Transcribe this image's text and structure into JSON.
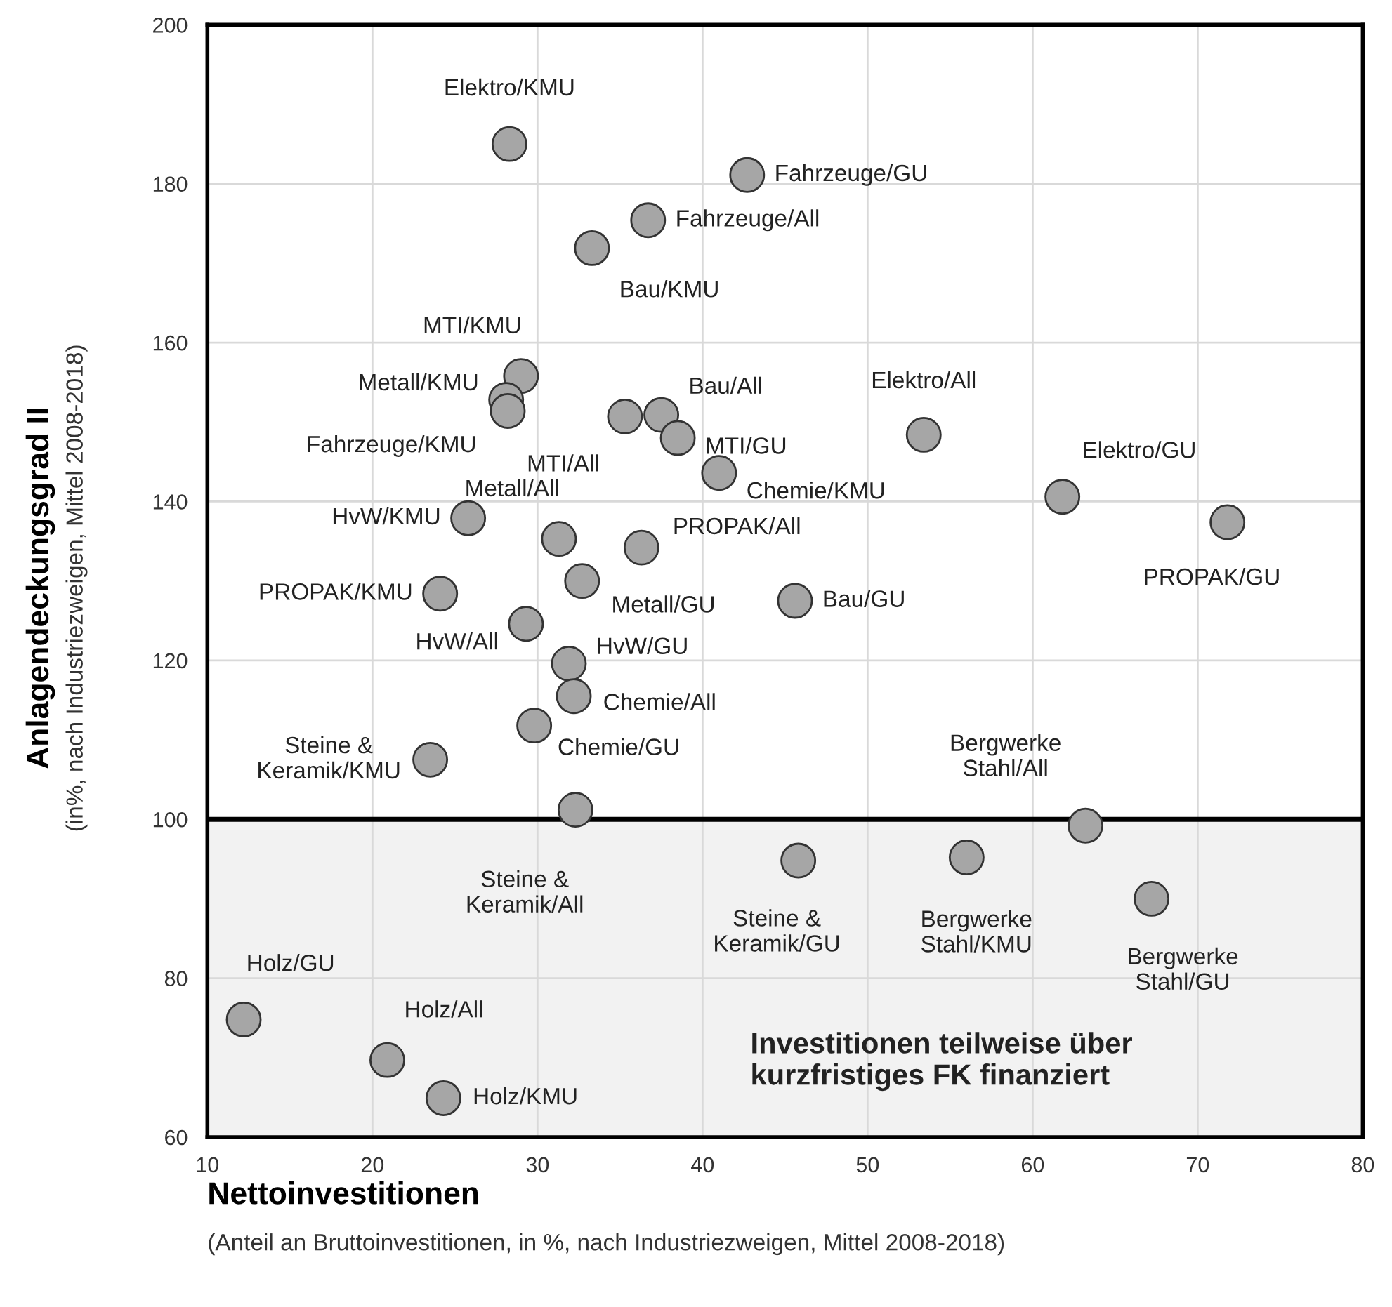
{
  "chart_data": {
    "type": "scatter",
    "xlabel": "Nettoinvestitionen",
    "ylabel": "Anlagendeckungsgrad II",
    "annotations": [
      "(Anteil an Bruttoinvestitionen, in %, nach Industriezweigen, Mittel 2008-2018)",
      "(in%, nach Industriezweigen, Mittel 2008-2018)"
    ],
    "x": [
      28.3,
      42.7,
      36.7,
      33.3,
      29.0,
      28.1,
      28.2,
      35.3,
      37.5,
      38.5,
      53.4,
      41.0,
      61.8,
      71.8,
      25.8,
      31.3,
      36.3,
      32.7,
      24.1,
      45.6,
      29.3,
      31.9,
      32.2,
      29.8,
      23.5,
      32.3,
      63.2,
      45.8,
      56.0,
      67.2,
      12.2,
      20.9,
      24.3
    ],
    "values": [
      185.0,
      181.1,
      175.4,
      171.9,
      155.8,
      152.8,
      151.4,
      150.7,
      150.9,
      148.0,
      148.4,
      143.6,
      140.6,
      137.4,
      137.9,
      135.3,
      134.2,
      130.0,
      128.4,
      127.5,
      124.6,
      119.6,
      115.5,
      111.8,
      107.5,
      101.2,
      99.2,
      94.8,
      95.2,
      90.0,
      74.8,
      69.7,
      64.9
    ],
    "value_labels": [
      "Elektro/KMU",
      "Fahrzeuge/GU",
      "Fahrzeuge/All",
      "Bau/KMU",
      "MTI/KMU",
      "Metall/KMU",
      "Fahrzeuge/KMU",
      "MTI/All",
      "Bau/All",
      "MTI/GU",
      "Elektro/All",
      "Chemie/KMU",
      "Elektro/GU",
      "PROPAK/GU",
      "HvW/KMU",
      "Metall/All",
      "PROPAK/All",
      "Metall/GU",
      "PROPAK/KMU",
      "Bau/GU",
      "HvW/All",
      "HvW/GU",
      "Chemie/All",
      "Chemie/GU",
      "Steine &\nKeramik/KMU",
      "Steine &\nKeramik/All",
      "Bergwerke\nStahl/All",
      "Steine &\nKeramik/GU",
      "Bergwerke\nStahl/KMU",
      "Bergwerke\nStahl/GU",
      "Holz/GU",
      "Holz/All",
      "Holz/KMU"
    ],
    "color": "#a6a6a6",
    "marker": "circle",
    "xlim": [
      10,
      80
    ],
    "xticks": [
      10,
      20,
      30,
      40,
      50,
      60,
      70,
      80
    ],
    "ylim": [
      60,
      200
    ],
    "yticks": [
      60,
      80,
      100,
      120,
      140,
      160,
      180,
      200
    ],
    "grid": true,
    "ref_lines": [
      {
        "axis": "y",
        "value": 100,
        "color": "#000000"
      }
    ],
    "bands": [
      {
        "axis": "y",
        "from": 60,
        "to": 100,
        "color": "#f2f2f2",
        "label": "Investitionen teilweise über\nkurzfristiges FK finanziert"
      }
    ]
  }
}
